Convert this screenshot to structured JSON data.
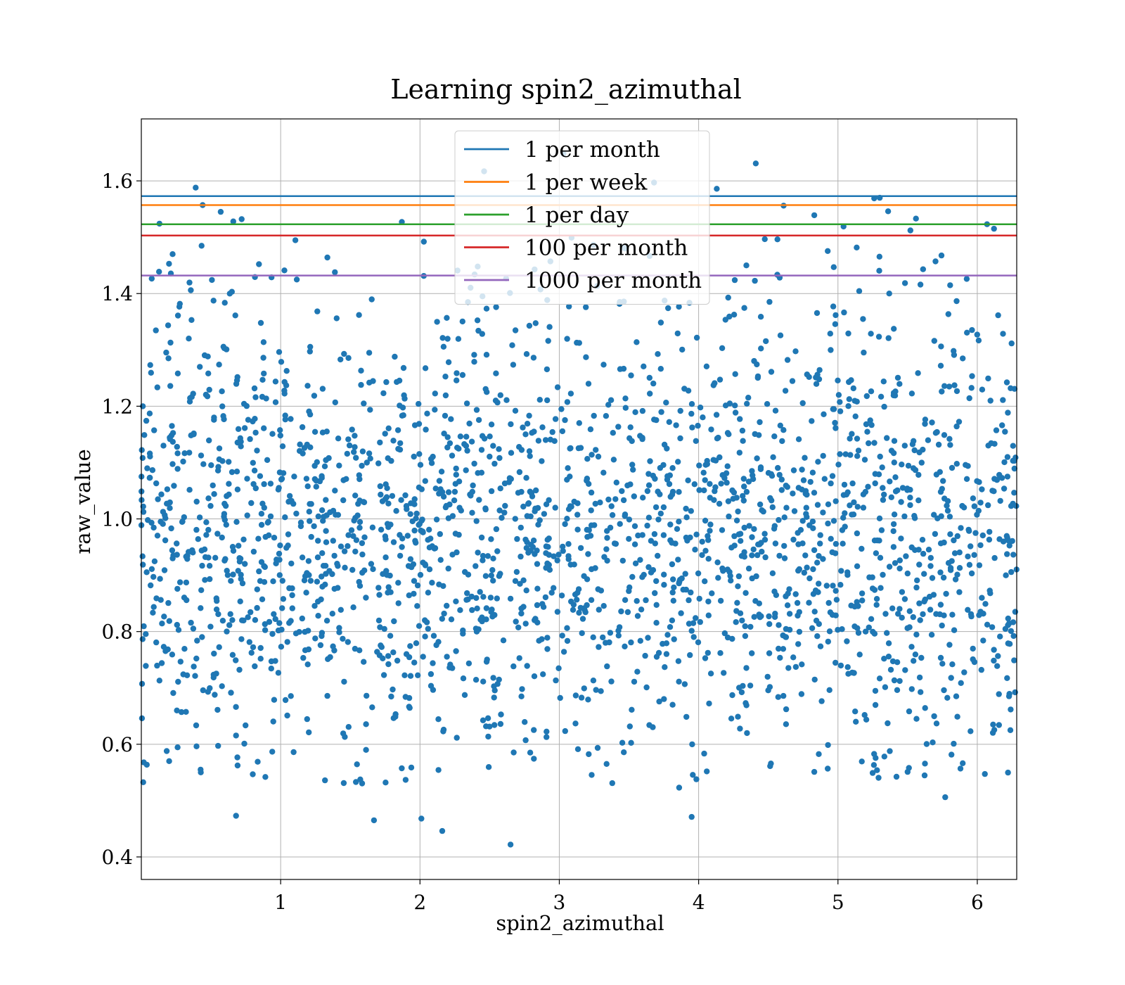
{
  "chart_data": {
    "type": "scatter",
    "title": "Learning spin2_azimuthal",
    "xlabel": "spin2_azimuthal",
    "ylabel": "raw_value",
    "xlim": [
      0,
      6.283
    ],
    "ylim": [
      0.36,
      1.71
    ],
    "xticks": [
      1,
      2,
      3,
      4,
      5,
      6
    ],
    "yticks": [
      0.4,
      0.6,
      0.8,
      1.0,
      1.2,
      1.4,
      1.6
    ],
    "xtick_labels": [
      "1",
      "2",
      "3",
      "4",
      "5",
      "6"
    ],
    "ytick_labels": [
      "0.4",
      "0.6",
      "0.8",
      "1.0",
      "1.2",
      "1.4",
      "1.6"
    ],
    "grid": true,
    "legend_position": "top-center",
    "point_color": "#1f77b4",
    "thresholds": [
      {
        "name": "1 per month",
        "value": 1.573,
        "color": "#1f77b4"
      },
      {
        "name": "1 per week",
        "value": 1.557,
        "color": "#ff7f0e"
      },
      {
        "name": "1 per day",
        "value": 1.523,
        "color": "#2ca02c"
      },
      {
        "name": "100 per month",
        "value": 1.503,
        "color": "#d62728"
      },
      {
        "name": "1000 per month",
        "value": 1.432,
        "color": "#9467bd"
      }
    ],
    "notable_points": [
      {
        "x": 0.39,
        "y": 1.588
      },
      {
        "x": 0.44,
        "y": 1.557
      },
      {
        "x": 0.57,
        "y": 1.545
      },
      {
        "x": 0.66,
        "y": 1.528
      },
      {
        "x": 0.72,
        "y": 1.532
      },
      {
        "x": 0.13,
        "y": 1.524
      },
      {
        "x": 1.87,
        "y": 1.527
      },
      {
        "x": 2.46,
        "y": 1.617
      },
      {
        "x": 3.03,
        "y": 1.648
      },
      {
        "x": 3.68,
        "y": 1.597
      },
      {
        "x": 4.13,
        "y": 1.586
      },
      {
        "x": 4.41,
        "y": 1.631
      },
      {
        "x": 4.61,
        "y": 1.556
      },
      {
        "x": 4.83,
        "y": 1.539
      },
      {
        "x": 5.26,
        "y": 1.569
      },
      {
        "x": 5.3,
        "y": 1.57
      },
      {
        "x": 5.36,
        "y": 1.546
      },
      {
        "x": 5.56,
        "y": 1.533
      },
      {
        "x": 5.52,
        "y": 1.512
      },
      {
        "x": 6.07,
        "y": 1.523
      },
      {
        "x": 6.12,
        "y": 1.515
      },
      {
        "x": 5.04,
        "y": 1.519
      },
      {
        "x": 2.65,
        "y": 0.422
      },
      {
        "x": 2.16,
        "y": 0.446
      },
      {
        "x": 2.01,
        "y": 0.468
      },
      {
        "x": 1.67,
        "y": 0.465
      },
      {
        "x": 0.68,
        "y": 0.473
      },
      {
        "x": 3.95,
        "y": 0.471
      },
      {
        "x": 5.77,
        "y": 0.506
      },
      {
        "x": 3.86,
        "y": 0.523
      },
      {
        "x": 3.38,
        "y": 0.531
      },
      {
        "x": 4.83,
        "y": 0.551
      },
      {
        "x": 0.89,
        "y": 0.542
      },
      {
        "x": 0.2,
        "y": 0.57
      },
      {
        "x": 1.54,
        "y": 0.533
      }
    ],
    "cloud": {
      "n": 2300,
      "x_min": 0.0,
      "x_max": 6.283,
      "y_center": 0.98,
      "y_spread": 0.2,
      "y_min": 0.53,
      "y_max": 1.5
    }
  }
}
